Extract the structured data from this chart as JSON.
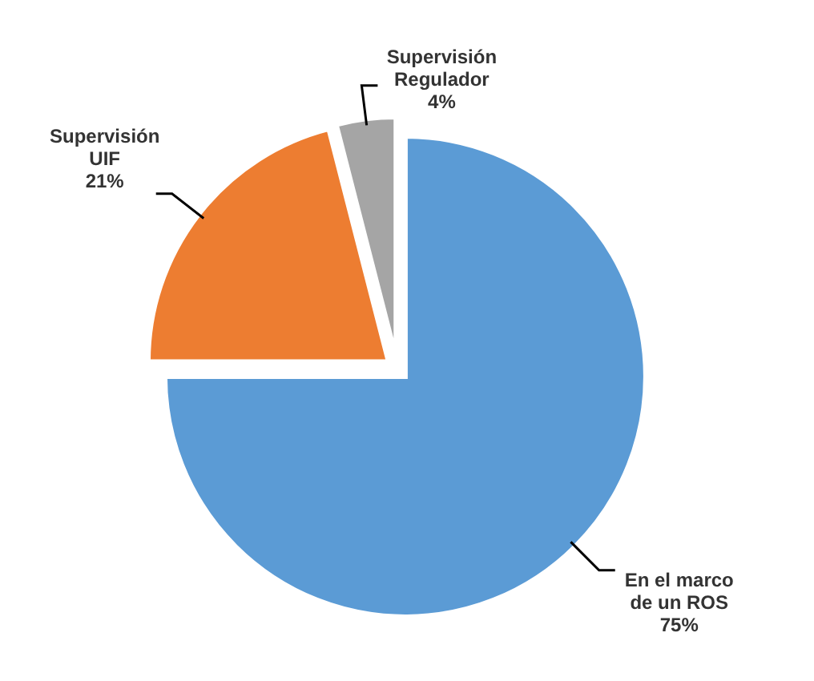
{
  "chart_data": {
    "type": "pie",
    "categories": [
      "En el marco de un ROS",
      "Supervisión UIF",
      "Supervisión Regulador"
    ],
    "values": [
      75,
      21,
      4
    ],
    "value_labels": [
      "75%",
      "21%",
      "4%"
    ],
    "colors": [
      "#5b9bd5",
      "#ed7d31",
      "#a5a5a5"
    ]
  }
}
